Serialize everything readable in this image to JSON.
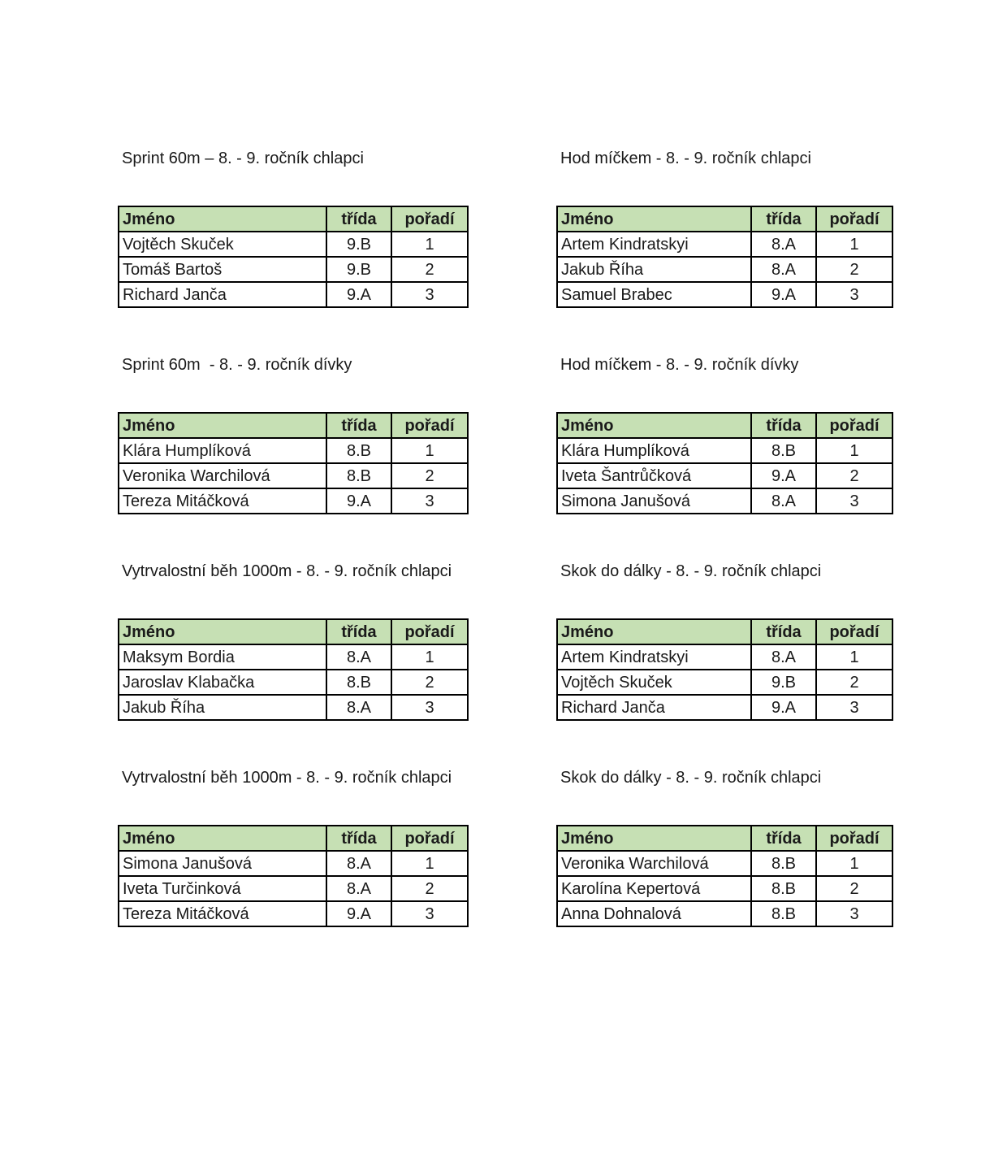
{
  "colors": {
    "header_bg": "#c6e0b4",
    "border": "#000000",
    "text": "#1a1a1a"
  },
  "table_headers": {
    "name": "Jméno",
    "class": "třída",
    "rank": "pořadí"
  },
  "sections": [
    {
      "title": "Sprint 60m – 8. - 9. ročník chlapci",
      "rows": [
        [
          "Vojtěch Skuček",
          "9.B",
          "1"
        ],
        [
          "Tomáš Bartoš",
          "9.B",
          "2"
        ],
        [
          "Richard Janča",
          "9.A",
          "3"
        ]
      ]
    },
    {
      "title": "Hod míčkem - 8. - 9. ročník chlapci",
      "rows": [
        [
          "Artem Kindratskyi",
          "8.A",
          "1"
        ],
        [
          "Jakub Říha",
          "8.A",
          "2"
        ],
        [
          "Samuel Brabec",
          "9.A",
          "3"
        ]
      ]
    },
    {
      "title": "Sprint 60m  - 8. - 9. ročník dívky",
      "rows": [
        [
          "Klára Humplíková",
          "8.B",
          "1"
        ],
        [
          "Veronika Warchilová",
          "8.B",
          "2"
        ],
        [
          "Tereza Mitáčková",
          "9.A",
          "3"
        ]
      ]
    },
    {
      "title": "Hod míčkem - 8. - 9. ročník dívky",
      "rows": [
        [
          "Klára Humplíková",
          "8.B",
          "1"
        ],
        [
          "Iveta Šantrůčková",
          "9.A",
          "2"
        ],
        [
          "Simona Janušová",
          "8.A",
          "3"
        ]
      ]
    },
    {
      "title": "Vytrvalostní běh 1000m - 8. - 9. ročník chlapci",
      "rows": [
        [
          "Maksym Bordia",
          "8.A",
          "1"
        ],
        [
          "Jaroslav Klabačka",
          "8.B",
          "2"
        ],
        [
          "Jakub Říha",
          "8.A",
          "3"
        ]
      ]
    },
    {
      "title": "Skok do dálky - 8. - 9. ročník chlapci",
      "rows": [
        [
          "Artem Kindratskyi",
          "8.A",
          "1"
        ],
        [
          "Vojtěch Skuček",
          "9.B",
          "2"
        ],
        [
          "Richard Janča",
          "9.A",
          "3"
        ]
      ]
    },
    {
      "title": "Vytrvalostní běh 1000m - 8. - 9. ročník chlapci",
      "rows": [
        [
          "Simona Janušová",
          "8.A",
          "1"
        ],
        [
          "Iveta Turčinková",
          "8.A",
          "2"
        ],
        [
          "Tereza Mitáčková",
          "9.A",
          "3"
        ]
      ]
    },
    {
      "title": "Skok do dálky - 8. - 9. ročník chlapci",
      "rows": [
        [
          "Veronika Warchilová",
          "8.B",
          "1"
        ],
        [
          "Karolína Kepertová",
          "8.B",
          "2"
        ],
        [
          "Anna Dohnalová",
          "8.B",
          "3"
        ]
      ]
    }
  ]
}
